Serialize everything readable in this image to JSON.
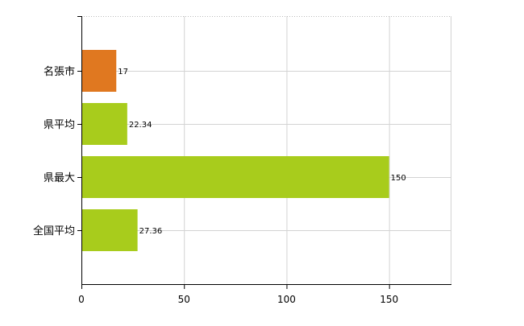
{
  "chart_data": {
    "type": "bar",
    "orientation": "horizontal",
    "categories": [
      "名張市",
      "県平均",
      "県最大",
      "全国平均"
    ],
    "values": [
      17,
      22.34,
      150,
      27.36
    ],
    "data_labels": [
      "17",
      "22.34",
      "150",
      "27.36"
    ],
    "bar_colors": [
      "#e07820",
      "#a8cc1c",
      "#a8cc1c",
      "#a8cc1c"
    ],
    "xlim": [
      0,
      180
    ],
    "xticks": [
      0,
      50,
      100,
      150
    ],
    "xtick_labels": [
      "0",
      "50",
      "100",
      "150"
    ],
    "grid": true,
    "title": "",
    "xlabel": "",
    "ylabel": ""
  }
}
